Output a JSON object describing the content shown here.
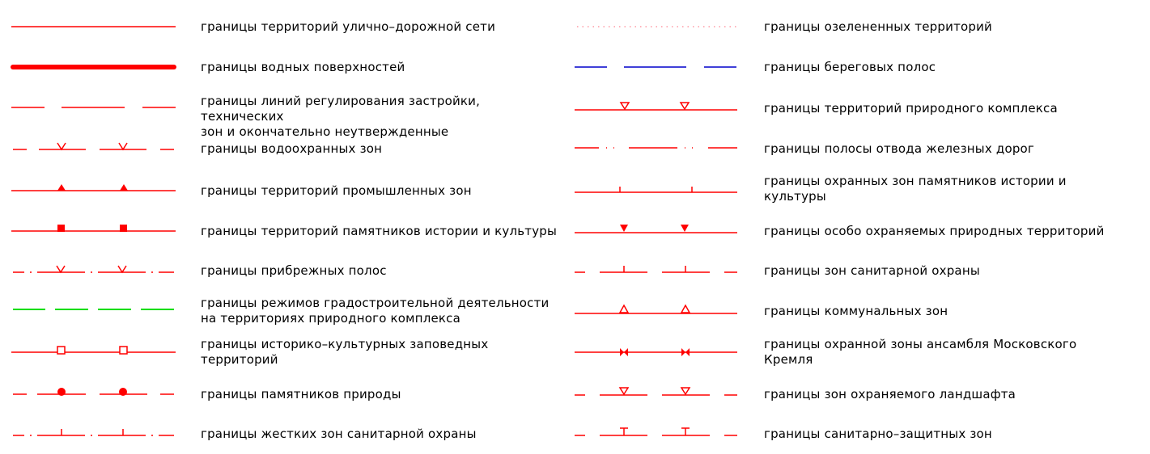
{
  "legend": {
    "left": [
      {
        "label": "границы территорий улично–дорожной сети",
        "symbol": "solid-line-icon"
      },
      {
        "label": "границы водных поверхностей",
        "symbol": "thick-solid-line-icon"
      },
      {
        "label": "границы линий регулирования застройки, технических\nзон и окончательно неутвержденные",
        "symbol": "long-dash-line-icon"
      },
      {
        "label": "границы водоохранных зон",
        "symbol": "dash-line-v-mark-icon"
      },
      {
        "label": "границы территорий промышленных зон",
        "symbol": "line-filled-triangle-icon"
      },
      {
        "label": "границы территорий памятников истории и культуры",
        "symbol": "line-filled-square-icon"
      },
      {
        "label": "границы прибрежных полос",
        "symbol": "dash-dot-line-v-mark-icon"
      },
      {
        "label": "границы режимов градостроительной деятельности\nна территориях природного комплекса",
        "symbol": "green-dash-line-icon"
      },
      {
        "label": "границы историко–культурных заповедных\nтерриторий",
        "symbol": "line-hollow-square-icon"
      },
      {
        "label": "границы памятников природы",
        "symbol": "dash-line-filled-circle-icon"
      },
      {
        "label": "границы жестких зон санитарной охраны",
        "symbol": "dash-dot-line-tick-icon"
      }
    ],
    "right": [
      {
        "label": "границы озелененных территорий",
        "symbol": "dotted-line-icon"
      },
      {
        "label": "границы береговых полос",
        "symbol": "blue-dash-line-icon"
      },
      {
        "label": "границы территорий природного комплекса",
        "symbol": "line-hollow-down-triangle-icon"
      },
      {
        "label": "границы полосы отвода железных дорог",
        "symbol": "dash-dot-dot-line-icon"
      },
      {
        "label": "границы охранных зон памятников истории и\nкультуры",
        "symbol": "line-small-tick-icon"
      },
      {
        "label": "границы особо охраняемых природных территорий",
        "symbol": "line-filled-down-triangle-icon"
      },
      {
        "label": "границы зон санитарной охраны",
        "symbol": "dash-line-tick-icon"
      },
      {
        "label": "границы коммунальных зон",
        "symbol": "line-hollow-up-triangle-icon"
      },
      {
        "label": "границы охранной зоны ансамбля Московского\nКремля",
        "symbol": "line-bowtie-icon"
      },
      {
        "label": "границы зон охраняемого ландшафта",
        "symbol": "dash-line-hollow-down-triangle-icon"
      },
      {
        "label": "границы санитарно–защитных зон",
        "symbol": "dash-line-t-mark-icon"
      }
    ]
  },
  "colors": {
    "red": "#ff0000",
    "blue": "#0000cc",
    "green": "#00dd00",
    "pink": "#ff6677",
    "text": "#000000"
  }
}
